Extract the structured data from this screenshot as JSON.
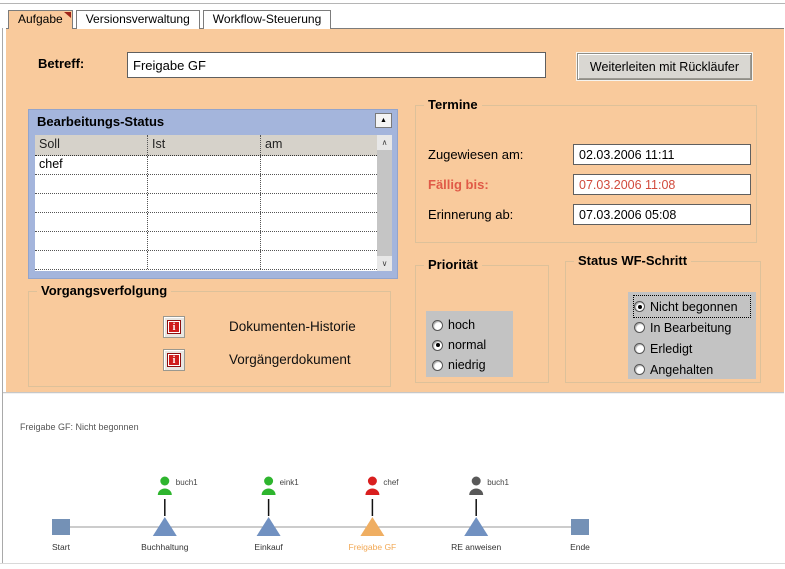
{
  "tabs": [
    {
      "label": "Aufgabe",
      "active": true
    },
    {
      "label": "Versionsverwaltung",
      "active": false
    },
    {
      "label": "Workflow-Steuerung",
      "active": false
    }
  ],
  "form": {
    "betreff_label": "Betreff:",
    "betreff_value": "Freigabe GF",
    "forward_button": "Weiterleiten mit Rückläufer"
  },
  "status_table": {
    "title": "Bearbeitungs-Status",
    "collapse_icon": "▲",
    "scroll_up_icon": "∧",
    "scroll_down_icon": "∨",
    "columns": [
      "Soll",
      "Ist",
      "am"
    ],
    "rows": [
      [
        "chef",
        "",
        ""
      ],
      [
        "",
        "",
        ""
      ],
      [
        "",
        "",
        ""
      ],
      [
        "",
        "",
        ""
      ],
      [
        "",
        "",
        ""
      ],
      [
        "",
        "",
        ""
      ]
    ]
  },
  "vorgangsverfolgung": {
    "title": "Vorgangsverfolgung",
    "items": [
      {
        "icon": "i",
        "label": "Dokumenten-Historie"
      },
      {
        "icon": "i",
        "label": "Vorgängerdokument"
      }
    ]
  },
  "termine": {
    "title": "Termine",
    "fields": [
      {
        "label": "Zugewiesen am:",
        "value": "02.03.2006 11:11",
        "highlight": false
      },
      {
        "label": "Fällig bis:",
        "value": "07.03.2006 11:08",
        "highlight": true
      },
      {
        "label": "Erinnerung ab:",
        "value": "07.03.2006 05:08",
        "highlight": false
      }
    ]
  },
  "prioritaet": {
    "title": "Priorität",
    "options": [
      {
        "label": "hoch",
        "selected": false,
        "focus": false
      },
      {
        "label": "normal",
        "selected": true,
        "focus": false
      },
      {
        "label": "niedrig",
        "selected": false,
        "focus": false
      }
    ]
  },
  "status_wf": {
    "title": "Status WF-Schritt",
    "options": [
      {
        "label": "Nicht begonnen",
        "selected": true,
        "focus": true
      },
      {
        "label": "In Bearbeitung",
        "selected": false,
        "focus": false
      },
      {
        "label": "Erledigt",
        "selected": false,
        "focus": false
      },
      {
        "label": "Angehalten",
        "selected": false,
        "focus": false
      }
    ]
  },
  "workflow": {
    "status_text": "Freigabe GF: Nicht begonnen",
    "nodes": [
      {
        "label": "Start",
        "shape": "square",
        "color": "#7491b6"
      },
      {
        "label": "Buchhaltung",
        "shape": "triangle",
        "color": "#7191c1",
        "person": {
          "name": "buch1",
          "color": "#2eb52e"
        }
      },
      {
        "label": "Einkauf",
        "shape": "triangle",
        "color": "#7191c1",
        "person": {
          "name": "eink1",
          "color": "#2eb52e"
        }
      },
      {
        "label": "Freigabe GF",
        "shape": "triangle",
        "color": "#efae62",
        "label_color": "#f2a854",
        "person": {
          "name": "chef",
          "color": "#d91f1f"
        }
      },
      {
        "label": "RE anweisen",
        "shape": "triangle",
        "color": "#7191c1",
        "person": {
          "name": "buch1",
          "color": "#595959"
        }
      },
      {
        "label": "Ende",
        "shape": "square",
        "color": "#7491b6"
      }
    ]
  },
  "colors": {
    "panel_orange": "#f9ca9c",
    "table_panel_blue": "#a4b5dc",
    "due_red": "#d14a3c",
    "radio_box_gray": "#c3c3c3",
    "info_icon_red": "#cf1d1d"
  }
}
